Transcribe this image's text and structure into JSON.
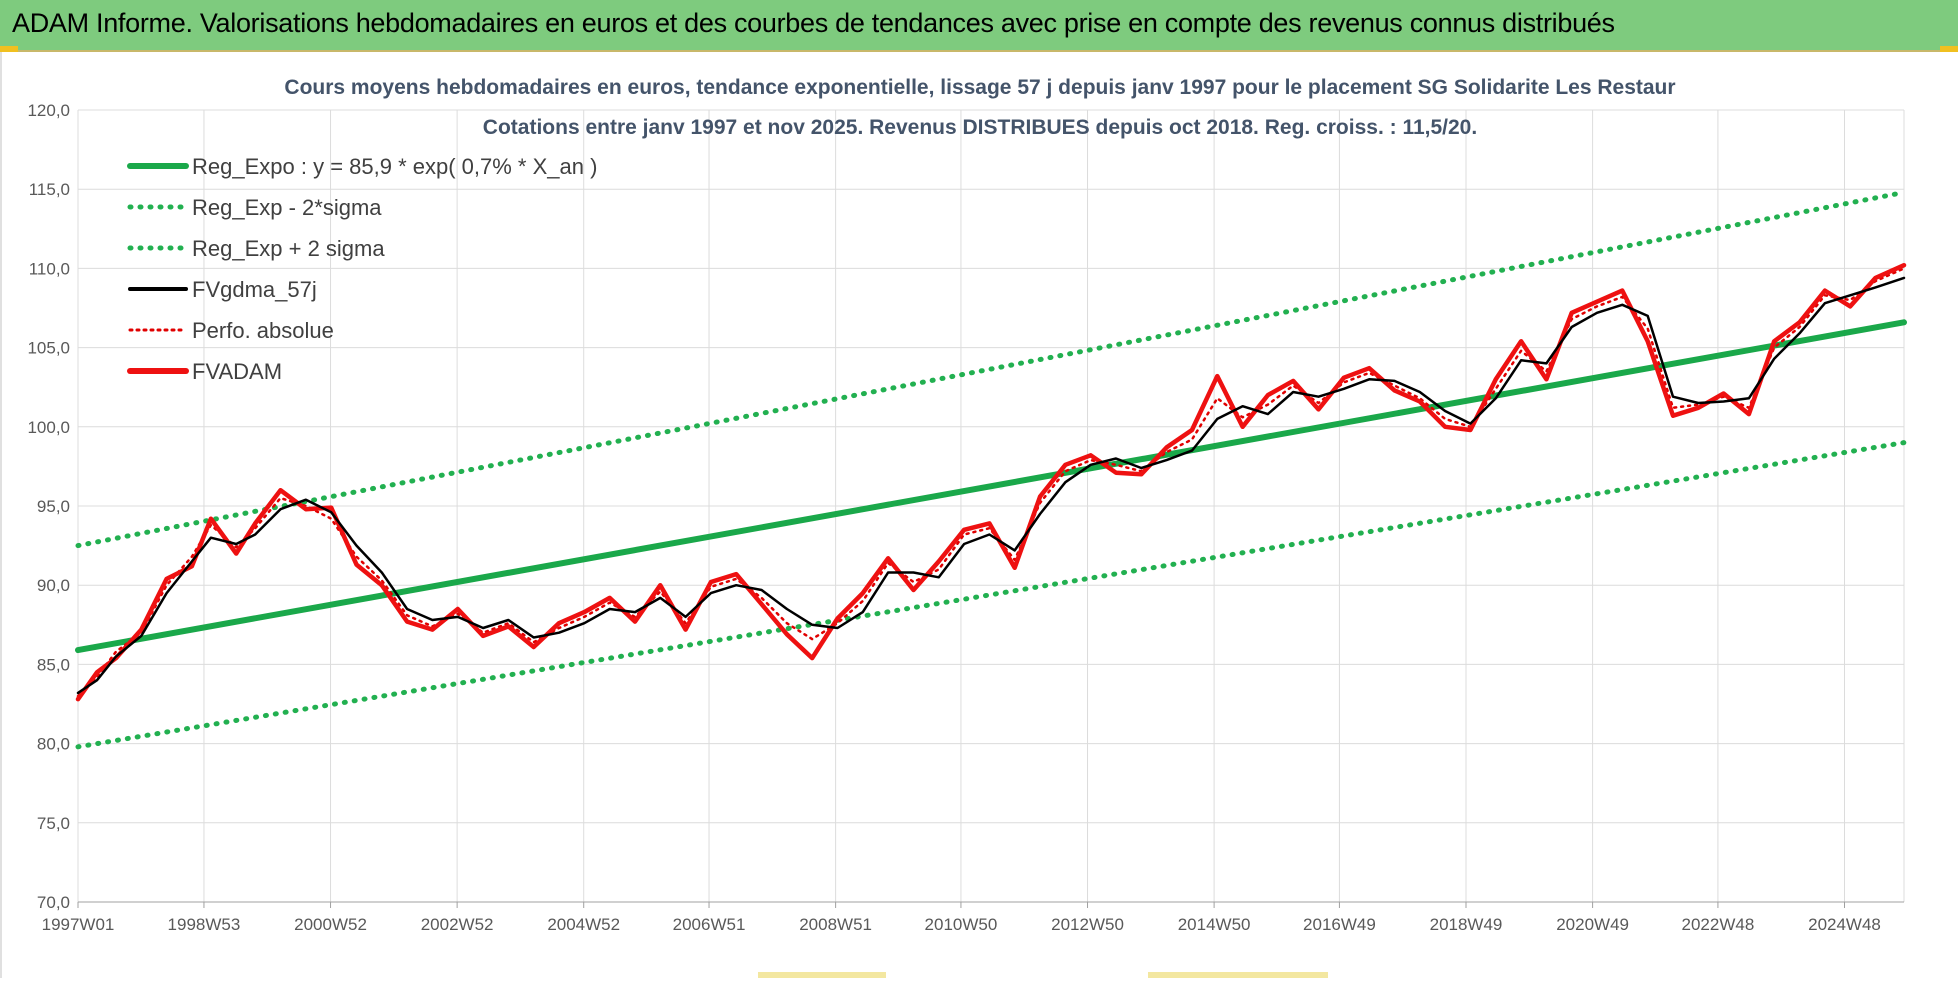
{
  "banner": {
    "title": "ADAM Informe. Valorisations hebdomadaires en euros et des courbes de tendances avec prise en compte des revenus connus distribués"
  },
  "colors": {
    "banner_bg": "#7ecb7e",
    "trend": "#1aa84a",
    "band": "#22b050",
    "smooth": "#000000",
    "perf": "#e00000",
    "price": "#ee1111",
    "grid": "#dcdcdc"
  },
  "chart_data": {
    "type": "line",
    "title": "Cours moyens hebdomadaires en euros, tendance exponentielle, lissage 57 j depuis janv 1997 pour le placement SG Solidarite Les Restaur",
    "subtitle": "Cotations entre janv 1997 et nov 2025. Revenus DISTRIBUES depuis oct 2018. Reg. croiss. : 11,5/20.",
    "xlabel": "",
    "ylabel": "",
    "ylim": [
      70,
      120
    ],
    "y_ticks": [
      "70,0",
      "75,0",
      "80,0",
      "85,0",
      "90,0",
      "95,0",
      "100,0",
      "105,0",
      "110,0",
      "115,0",
      "120,0"
    ],
    "x_range": [
      1997.0,
      2025.85
    ],
    "x_ticks": [
      {
        "label": "1997W01",
        "x": 1997.0
      },
      {
        "label": "1998W53",
        "x": 1998.99
      },
      {
        "label": "2000W52",
        "x": 2000.99
      },
      {
        "label": "2002W52",
        "x": 2002.99
      },
      {
        "label": "2004W52",
        "x": 2004.99
      },
      {
        "label": "2006W51",
        "x": 2006.97
      },
      {
        "label": "2008W51",
        "x": 2008.97
      },
      {
        "label": "2010W50",
        "x": 2010.95
      },
      {
        "label": "2012W50",
        "x": 2012.95
      },
      {
        "label": "2014W50",
        "x": 2014.95
      },
      {
        "label": "2016W49",
        "x": 2016.93
      },
      {
        "label": "2018W49",
        "x": 2018.93
      },
      {
        "label": "2020W49",
        "x": 2020.93
      },
      {
        "label": "2022W48",
        "x": 2022.91
      },
      {
        "label": "2024W48",
        "x": 2024.91
      }
    ],
    "legend_position": "top-left",
    "grid": true,
    "series": [
      {
        "name": "Reg_Expo : y = 85,9 * exp( 0,7% *  X_an )",
        "style": "solid-thick",
        "color": "#1aa84a",
        "x": [
          1997.0,
          2025.85
        ],
        "values": [
          85.9,
          106.6
        ]
      },
      {
        "name": "Reg_Exp - 2*sigma",
        "style": "dotted",
        "color": "#22b050",
        "x": [
          1997.0,
          2025.85
        ],
        "values": [
          79.8,
          99.0
        ]
      },
      {
        "name": "Reg_Exp + 2 sigma",
        "style": "dotted",
        "color": "#22b050",
        "x": [
          1997.0,
          2025.85
        ],
        "values": [
          92.5,
          114.8
        ]
      },
      {
        "name": "FVgdma_57j",
        "style": "solid",
        "color": "#000000",
        "x": [
          1997.0,
          1997.3,
          1997.6,
          1998.0,
          1998.4,
          1998.8,
          1999.1,
          1999.5,
          1999.8,
          2000.2,
          2000.6,
          2001.0,
          2001.4,
          2001.8,
          2002.2,
          2002.6,
          2003.0,
          2003.4,
          2003.8,
          2004.2,
          2004.6,
          2005.0,
          2005.4,
          2005.8,
          2006.2,
          2006.6,
          2007.0,
          2007.4,
          2007.8,
          2008.2,
          2008.6,
          2009.0,
          2009.4,
          2009.8,
          2010.2,
          2010.6,
          2011.0,
          2011.4,
          2011.8,
          2012.2,
          2012.6,
          2013.0,
          2013.4,
          2013.8,
          2014.2,
          2014.6,
          2015.0,
          2015.4,
          2015.8,
          2016.2,
          2016.6,
          2017.0,
          2017.4,
          2017.8,
          2018.2,
          2018.6,
          2019.0,
          2019.4,
          2019.8,
          2020.2,
          2020.6,
          2021.0,
          2021.4,
          2021.8,
          2022.2,
          2022.6,
          2023.0,
          2023.4,
          2023.8,
          2024.2,
          2024.6,
          2025.0,
          2025.4,
          2025.85
        ],
        "values": [
          83.2,
          84.0,
          85.5,
          86.8,
          89.5,
          91.5,
          93.0,
          92.6,
          93.2,
          94.8,
          95.4,
          94.6,
          92.5,
          90.8,
          88.5,
          87.8,
          88.0,
          87.3,
          87.8,
          86.7,
          87.0,
          87.6,
          88.5,
          88.3,
          89.2,
          88.0,
          89.5,
          90.0,
          89.7,
          88.5,
          87.5,
          87.3,
          88.3,
          90.8,
          90.8,
          90.5,
          92.6,
          93.2,
          92.2,
          94.5,
          96.5,
          97.6,
          98.0,
          97.4,
          97.9,
          98.5,
          100.5,
          101.3,
          100.8,
          102.2,
          101.9,
          102.4,
          103.0,
          102.9,
          102.2,
          101.0,
          100.2,
          101.8,
          104.2,
          104.0,
          106.3,
          107.2,
          107.7,
          107.0,
          101.9,
          101.5,
          101.6,
          101.8,
          104.3,
          105.9,
          107.8,
          108.3,
          108.8,
          109.4
        ]
      },
      {
        "name": "Perfo. absolue",
        "style": "dotted",
        "color": "#e00000",
        "x": [
          1997.0,
          1997.3,
          1997.6,
          1998.0,
          1998.4,
          1998.8,
          1999.1,
          1999.5,
          1999.8,
          2000.2,
          2000.6,
          2001.0,
          2001.4,
          2001.8,
          2002.2,
          2002.6,
          2003.0,
          2003.4,
          2003.8,
          2004.2,
          2004.6,
          2005.0,
          2005.4,
          2005.8,
          2006.2,
          2006.6,
          2007.0,
          2007.4,
          2007.8,
          2008.2,
          2008.6,
          2009.0,
          2009.4,
          2009.8,
          2010.2,
          2010.6,
          2011.0,
          2011.4,
          2011.8,
          2012.2,
          2012.6,
          2013.0,
          2013.4,
          2013.8,
          2014.2,
          2014.6,
          2015.0,
          2015.4,
          2015.8,
          2016.2,
          2016.6,
          2017.0,
          2017.4,
          2017.8,
          2018.2,
          2018.6,
          2019.0,
          2019.4,
          2019.8,
          2020.2,
          2020.6,
          2021.0,
          2021.4,
          2021.8,
          2022.2,
          2022.6,
          2023.0,
          2023.4,
          2023.8,
          2024.2,
          2024.6,
          2025.0,
          2025.4,
          2025.85
        ],
        "values": [
          83.0,
          84.2,
          85.8,
          87.0,
          90.0,
          91.8,
          93.8,
          92.4,
          93.6,
          95.5,
          95.0,
          94.2,
          91.8,
          90.3,
          88.1,
          87.4,
          88.2,
          87.0,
          87.6,
          86.4,
          87.3,
          88.0,
          88.9,
          88.0,
          89.6,
          87.6,
          89.9,
          90.4,
          89.2,
          87.6,
          86.6,
          87.6,
          89.0,
          91.4,
          90.2,
          91.0,
          93.2,
          93.6,
          91.6,
          95.2,
          97.2,
          97.9,
          97.6,
          97.2,
          98.4,
          99.2,
          101.8,
          100.6,
          101.4,
          102.6,
          101.5,
          102.8,
          103.4,
          102.6,
          101.8,
          100.5,
          100.0,
          102.4,
          104.8,
          103.5,
          106.8,
          107.6,
          108.2,
          106.2,
          101.2,
          101.4,
          101.9,
          101.2,
          105.0,
          106.3,
          108.3,
          108.0,
          109.2,
          110.0
        ]
      },
      {
        "name": "FVADAM",
        "style": "solid-thick",
        "color": "#ee1111",
        "x": [
          1997.0,
          1997.3,
          1997.6,
          1998.0,
          1998.4,
          1998.8,
          1999.1,
          1999.5,
          1999.8,
          2000.2,
          2000.6,
          2001.0,
          2001.4,
          2001.8,
          2002.2,
          2002.6,
          2003.0,
          2003.4,
          2003.8,
          2004.2,
          2004.6,
          2005.0,
          2005.4,
          2005.8,
          2006.2,
          2006.6,
          2007.0,
          2007.4,
          2007.8,
          2008.2,
          2008.6,
          2009.0,
          2009.4,
          2009.8,
          2010.2,
          2010.6,
          2011.0,
          2011.4,
          2011.8,
          2012.2,
          2012.6,
          2013.0,
          2013.4,
          2013.8,
          2014.2,
          2014.6,
          2015.0,
          2015.4,
          2015.8,
          2016.2,
          2016.6,
          2017.0,
          2017.4,
          2017.8,
          2018.2,
          2018.6,
          2019.0,
          2019.4,
          2019.8,
          2020.2,
          2020.6,
          2021.0,
          2021.4,
          2021.8,
          2022.2,
          2022.6,
          2023.0,
          2023.4,
          2023.8,
          2024.2,
          2024.6,
          2025.0,
          2025.4,
          2025.85
        ],
        "values": [
          82.8,
          84.5,
          85.4,
          87.2,
          90.4,
          91.2,
          94.2,
          92.0,
          93.9,
          96.0,
          94.8,
          94.9,
          91.3,
          90.0,
          87.7,
          87.2,
          88.5,
          86.8,
          87.4,
          86.1,
          87.6,
          88.3,
          89.2,
          87.7,
          90.0,
          87.2,
          90.2,
          90.7,
          88.8,
          86.9,
          85.4,
          87.9,
          89.5,
          91.7,
          89.7,
          91.5,
          93.5,
          93.9,
          91.1,
          95.6,
          97.6,
          98.2,
          97.1,
          97.0,
          98.7,
          99.8,
          103.2,
          100.0,
          102.0,
          102.9,
          101.1,
          103.1,
          103.7,
          102.3,
          101.6,
          100.0,
          99.8,
          103.0,
          105.4,
          103.0,
          107.2,
          107.9,
          108.6,
          105.4,
          100.7,
          101.2,
          102.1,
          100.8,
          105.4,
          106.6,
          108.6,
          107.6,
          109.4,
          110.2
        ]
      }
    ]
  }
}
